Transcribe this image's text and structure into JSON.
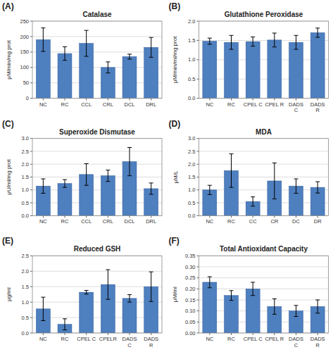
{
  "chart_data": [
    {
      "type": "bar",
      "title": "Catalase",
      "ylabel": "μM/min/mg prot",
      "annotations": [
        "(A)"
      ],
      "categories": [
        "NC",
        "RC",
        "CCL",
        "CRL",
        "DCL",
        "DRL"
      ],
      "values": [
        190,
        145,
        178,
        100,
        135,
        165
      ],
      "errors": [
        38,
        22,
        42,
        18,
        8,
        32
      ],
      "color": "#4E7FBF",
      "ylim": [
        0,
        250
      ],
      "yticks": [
        0,
        50,
        100,
        150,
        200,
        250
      ],
      "grid": true
    },
    {
      "type": "bar",
      "title": "Glutathione Peroxidase",
      "ylabel": "μM/min/ml/mg prot",
      "annotations": [
        "(B)"
      ],
      "categories": [
        "NC",
        "RC",
        "CPEL C",
        "CPEL R",
        "DADS\nC",
        "DADS\nR"
      ],
      "values": [
        1.48,
        1.45,
        1.47,
        1.51,
        1.45,
        1.7
      ],
      "errors": [
        0.08,
        0.18,
        0.12,
        0.18,
        0.18,
        0.12
      ],
      "color": "#4E7FBF",
      "ylim": [
        0,
        2
      ],
      "yticks": [
        {
          "value": 0,
          "label": "0.0"
        },
        0.5,
        {
          "value": 1.0,
          "label": "1.0"
        },
        1.5,
        {
          "value": 2.0,
          "label": "2.0"
        }
      ],
      "grid": true
    },
    {
      "type": "bar",
      "title": "Superoxide Dismutase",
      "ylabel": "μU/ml/mg prot",
      "annotations": [
        "(C)"
      ],
      "categories": [
        "NC",
        "RC",
        "CCL",
        "CRL",
        "DCL",
        "DRL"
      ],
      "values": [
        1.15,
        1.25,
        1.6,
        1.55,
        2.1,
        1.05
      ],
      "errors": [
        0.28,
        0.15,
        0.42,
        0.22,
        0.55,
        0.22
      ],
      "color": "#4E7FBF",
      "ylim": [
        0,
        3
      ],
      "yticks": [
        {
          "value": 0,
          "label": "0.0"
        },
        0.5,
        {
          "value": 1.0,
          "label": "1.0"
        },
        1.5,
        {
          "value": 2.0,
          "label": "2.0"
        },
        2.5,
        {
          "value": 3.0,
          "label": "3.0"
        }
      ],
      "grid": true
    },
    {
      "type": "bar",
      "title": "MDA",
      "ylabel": "μM/L",
      "annotations": [
        "(D)"
      ],
      "categories": [
        "NC",
        "RC",
        "CC",
        "CR",
        "DC",
        "DR"
      ],
      "values": [
        1.0,
        1.75,
        0.55,
        1.35,
        1.15,
        1.1
      ],
      "errors": [
        0.18,
        0.65,
        0.18,
        0.7,
        0.28,
        0.22
      ],
      "color": "#4E7FBF",
      "ylim": [
        0,
        3
      ],
      "yticks": [
        {
          "value": 0,
          "label": "0.0"
        },
        0.5,
        {
          "value": 1.0,
          "label": "1.0"
        },
        1.5,
        {
          "value": 2.0,
          "label": "2.0"
        },
        2.5,
        {
          "value": 3.0,
          "label": "3.0"
        }
      ],
      "grid": true
    },
    {
      "type": "bar",
      "title": "Reduced GSH",
      "ylabel": "μg/ml",
      "annotations": [
        "(E)"
      ],
      "categories": [
        "NC",
        "RC",
        "CPEL C",
        "CPELR",
        "DADS\nC",
        "DADS\nR"
      ],
      "values": [
        0.78,
        0.28,
        1.32,
        1.57,
        1.12,
        1.5
      ],
      "errors": [
        0.38,
        0.18,
        0.06,
        0.48,
        0.12,
        0.48
      ],
      "color": "#4E7FBF",
      "ylim": [
        0,
        2.5
      ],
      "yticks": [
        {
          "value": 0,
          "label": "0.0"
        },
        0.5,
        {
          "value": 1.0,
          "label": "1.0"
        },
        1.5,
        {
          "value": 2.0,
          "label": "2.0"
        },
        2.5
      ],
      "grid": true
    },
    {
      "type": "bar",
      "title": "Total Antioxidant Capacity",
      "ylabel": "μM/ml",
      "annotations": [
        "(F)"
      ],
      "categories": [
        "NC",
        "RC",
        "CPEL C",
        "CPEL R",
        "DADS\nC",
        "DADS\nR"
      ],
      "values": [
        0.23,
        0.17,
        0.2,
        0.12,
        0.1,
        0.12
      ],
      "errors": [
        0.025,
        0.022,
        0.03,
        0.035,
        0.025,
        0.03
      ],
      "color": "#4E7FBF",
      "ylim": [
        0,
        0.35
      ],
      "yticks": [
        {
          "value": 0,
          "label": "0.00"
        },
        0.05,
        {
          "value": 0.1,
          "label": "0.10"
        },
        0.15,
        {
          "value": 0.2,
          "label": "0.20"
        },
        0.25,
        {
          "value": 0.3,
          "label": "0.30"
        },
        0.35
      ],
      "grid": true
    }
  ]
}
